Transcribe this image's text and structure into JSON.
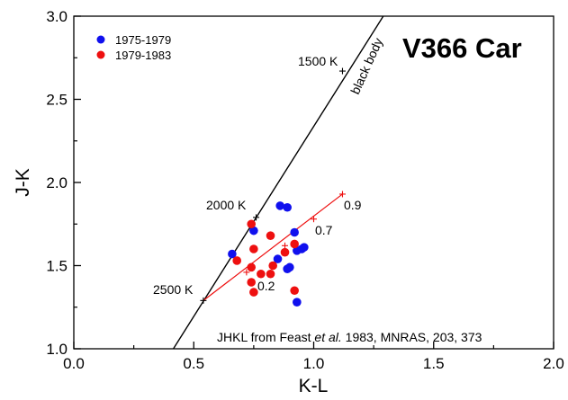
{
  "chart_data": {
    "type": "scatter",
    "title": "V366 Car",
    "xlabel": "K-L",
    "ylabel": "J-K",
    "xlim": [
      0.0,
      2.0
    ],
    "ylim": [
      1.0,
      3.0
    ],
    "x_ticks": [
      "0.0",
      "0.5",
      "1.0",
      "1.5",
      "2.0"
    ],
    "y_ticks": [
      "1.0",
      "1.5",
      "2.0",
      "2.5",
      "3.0"
    ],
    "legend_position": "top-left",
    "series": [
      {
        "name": "1975-1979",
        "color": "#1010ee",
        "points": [
          {
            "x": 0.66,
            "y": 1.57
          },
          {
            "x": 0.75,
            "y": 1.71
          },
          {
            "x": 0.86,
            "y": 1.86
          },
          {
            "x": 0.89,
            "y": 1.85
          },
          {
            "x": 0.92,
            "y": 1.7
          },
          {
            "x": 0.85,
            "y": 1.54
          },
          {
            "x": 0.89,
            "y": 1.48
          },
          {
            "x": 0.9,
            "y": 1.49
          },
          {
            "x": 0.93,
            "y": 1.59
          },
          {
            "x": 0.95,
            "y": 1.6
          },
          {
            "x": 0.96,
            "y": 1.61
          },
          {
            "x": 0.93,
            "y": 1.28
          }
        ]
      },
      {
        "name": "1979-1983",
        "color": "#ee1010",
        "points": [
          {
            "x": 0.74,
            "y": 1.75
          },
          {
            "x": 0.82,
            "y": 1.68
          },
          {
            "x": 0.75,
            "y": 1.6
          },
          {
            "x": 0.68,
            "y": 1.53
          },
          {
            "x": 0.74,
            "y": 1.49
          },
          {
            "x": 0.78,
            "y": 1.45
          },
          {
            "x": 0.82,
            "y": 1.45
          },
          {
            "x": 0.83,
            "y": 1.5
          },
          {
            "x": 0.88,
            "y": 1.58
          },
          {
            "x": 0.92,
            "y": 1.63
          },
          {
            "x": 0.74,
            "y": 1.4
          },
          {
            "x": 0.75,
            "y": 1.34
          },
          {
            "x": 0.92,
            "y": 1.35
          }
        ]
      }
    ],
    "blackbody_line": {
      "label": "black body",
      "color": "#000000",
      "x": [
        0.415,
        1.29
      ],
      "y": [
        1.0,
        3.0
      ],
      "markers": [
        {
          "x": 1.12,
          "y": 2.67,
          "label": "1500 K"
        },
        {
          "x": 0.76,
          "y": 1.79,
          "label": "2000 K"
        },
        {
          "x": 0.54,
          "y": 1.29,
          "label": "2500 K"
        }
      ]
    },
    "model_line": {
      "color": "#ee1010",
      "x": [
        0.54,
        1.12
      ],
      "y": [
        1.29,
        1.93
      ],
      "markers": [
        {
          "x": 0.72,
          "y": 1.46,
          "label": "0.2"
        },
        {
          "x": 0.88,
          "y": 1.62,
          "label": ""
        },
        {
          "x": 1.0,
          "y": 1.78,
          "label": "0.7"
        },
        {
          "x": 1.12,
          "y": 1.93,
          "label": "0.9"
        }
      ]
    },
    "annotation": {
      "prefix": "JHKL from Feast ",
      "italic": "et al.",
      "suffix": " 1983, MNRAS, 203, 373"
    }
  }
}
